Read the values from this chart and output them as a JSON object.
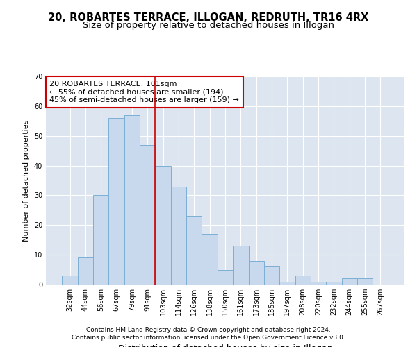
{
  "title1": "20, ROBARTES TERRACE, ILLOGAN, REDRUTH, TR16 4RX",
  "title2": "Size of property relative to detached houses in Illogan",
  "xlabel": "Distribution of detached houses by size in Illogan",
  "ylabel": "Number of detached properties",
  "categories": [
    "32sqm",
    "44sqm",
    "56sqm",
    "67sqm",
    "79sqm",
    "91sqm",
    "103sqm",
    "114sqm",
    "126sqm",
    "138sqm",
    "150sqm",
    "161sqm",
    "173sqm",
    "185sqm",
    "197sqm",
    "208sqm",
    "220sqm",
    "232sqm",
    "244sqm",
    "255sqm",
    "267sqm"
  ],
  "values": [
    3,
    9,
    30,
    56,
    57,
    47,
    40,
    33,
    23,
    17,
    5,
    13,
    8,
    6,
    1,
    3,
    1,
    1,
    2,
    2,
    0
  ],
  "bar_color": "#c9d9ed",
  "bar_edge_color": "#7bafd4",
  "background_color": "#dde6f0",
  "ylim": [
    0,
    70
  ],
  "yticks": [
    0,
    10,
    20,
    30,
    40,
    50,
    60,
    70
  ],
  "vline_x": 5.5,
  "vline_color": "#cc0000",
  "annotation_line1": "20 ROBARTES TERRACE: 101sqm",
  "annotation_line2": "← 55% of detached houses are smaller (194)",
  "annotation_line3": "45% of semi-detached houses are larger (159) →",
  "annotation_box_color": "#ffffff",
  "annotation_box_edge": "#cc0000",
  "footer1": "Contains HM Land Registry data © Crown copyright and database right 2024.",
  "footer2": "Contains public sector information licensed under the Open Government Licence v3.0.",
  "title1_fontsize": 10.5,
  "title2_fontsize": 9.5,
  "xlabel_fontsize": 9,
  "ylabel_fontsize": 8,
  "tick_fontsize": 7,
  "annotation_fontsize": 8,
  "footer_fontsize": 6.5
}
